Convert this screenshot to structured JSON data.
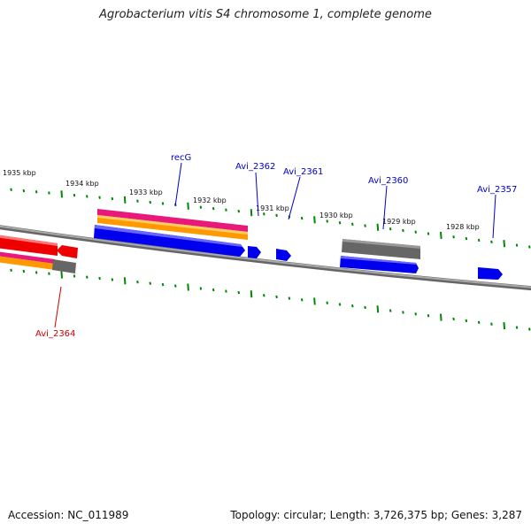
{
  "title": "Agrobacterium vitis S4 chromosome 1, complete genome",
  "footer": {
    "accession": "Accession: NC_011989",
    "summary": "Topology: circular; Length: 3,726,375 bp; Genes: 3,287"
  },
  "ticks": [
    "1935 kbp",
    "1934 kbp",
    "1933 kbp",
    "1932 kbp",
    "1931 kbp",
    "1930 kbp",
    "1929 kbp",
    "1928 kbp"
  ],
  "genes": [
    {
      "label": "recG",
      "color": "#0000cc"
    },
    {
      "label": "Avi_2362",
      "color": "#0000cc"
    },
    {
      "label": "Avi_2361",
      "color": "#0000cc"
    },
    {
      "label": "Avi_2360",
      "color": "#0000cc"
    },
    {
      "label": "Avi_2357",
      "color": "#0000cc"
    },
    {
      "label": "Avi_2364",
      "color": "#cc0000"
    }
  ],
  "colors": {
    "forward_cds": "#0000ee",
    "reverse_cds": "#ee0000",
    "gene_gray": "#666666",
    "feature_pink": "#e8197a",
    "feature_orange": "#ff9900",
    "backbone": "#888888",
    "tick_marks": "#008800"
  }
}
